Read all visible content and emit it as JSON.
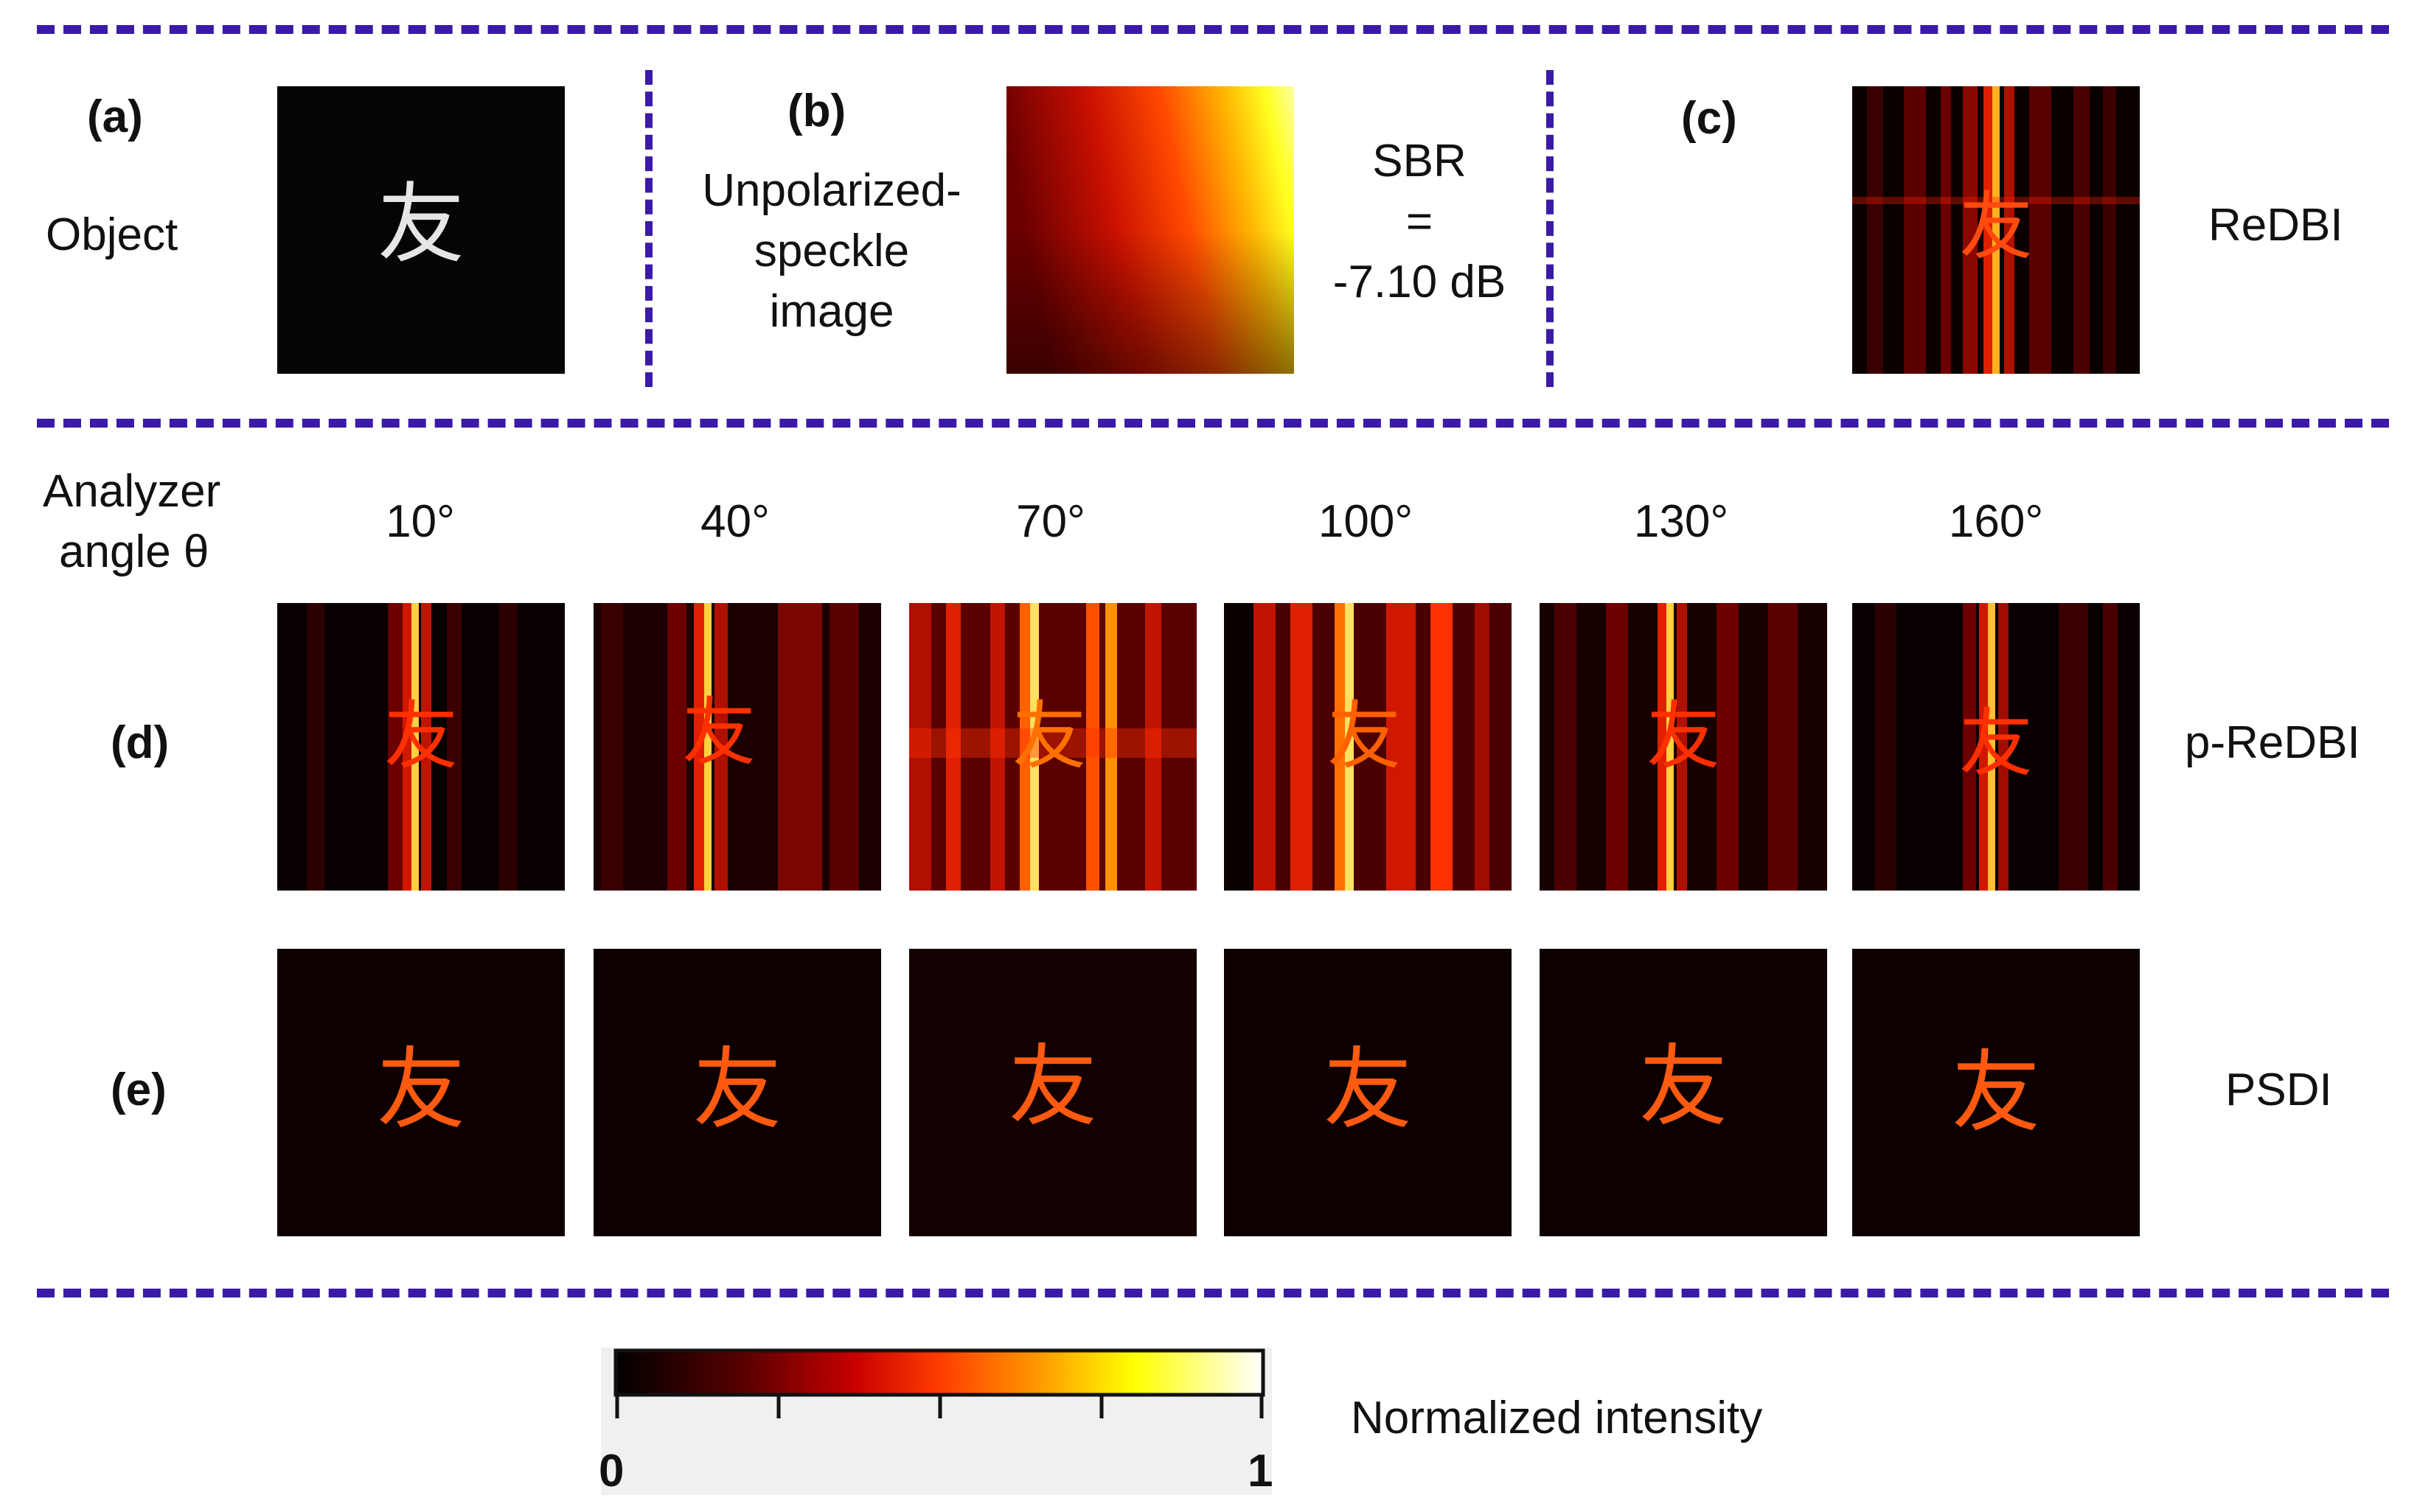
{
  "panels": {
    "a": {
      "label": "(a)",
      "text": "Object"
    },
    "b": {
      "label": "(b)",
      "text_lines": [
        "Unpolarized-",
        "speckle",
        "image"
      ]
    },
    "sbr": {
      "lines": [
        "SBR",
        "=",
        "-7.10 dB"
      ]
    },
    "c": {
      "label": "(c)",
      "method": "ReDBI"
    },
    "d": {
      "label": "(d)",
      "method": "p-ReDBI"
    },
    "e": {
      "label": "(e)",
      "method": "PSDI"
    }
  },
  "object_character": "友",
  "analyzer": {
    "title_lines": [
      "Analyzer",
      "angle θ"
    ],
    "angles": [
      "10°",
      "40°",
      "70°",
      "100°",
      "130°",
      "160°"
    ]
  },
  "colorbar": {
    "label": "Normalized intensity",
    "min_label": "0",
    "max_label": "1",
    "colormap": "hot",
    "stops": [
      "#000000",
      "#5a0000",
      "#c80000",
      "#ff3c00",
      "#ff9600",
      "#ffff00",
      "#ffffff"
    ]
  },
  "colors": {
    "divider": "#3a1aa6"
  }
}
